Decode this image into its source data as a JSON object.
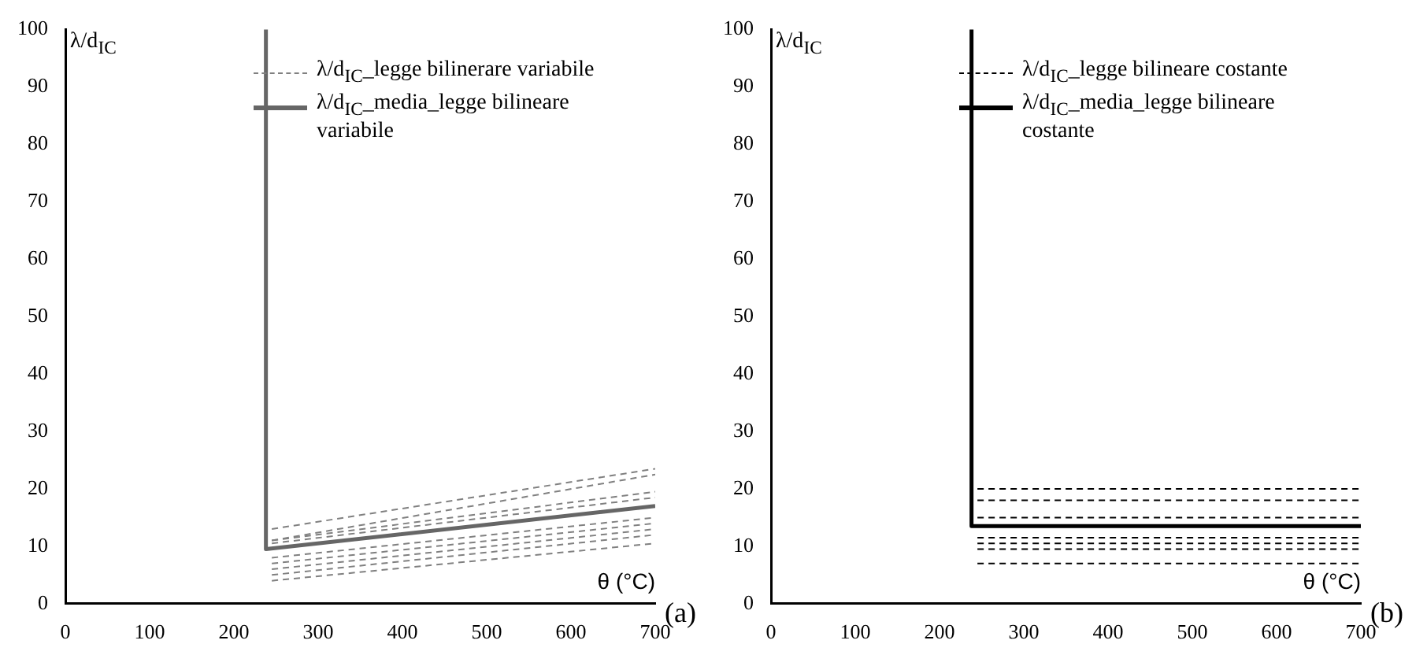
{
  "chart_data": [
    {
      "type": "line",
      "ylabel": "λ/d$_{IC}$",
      "xlabel": "θ (°C)",
      "xlim": [
        0,
        700
      ],
      "xticks": [
        0,
        100,
        200,
        300,
        400,
        500,
        600,
        700
      ],
      "ylim": [
        0,
        100
      ],
      "yticks": [
        0,
        10,
        20,
        30,
        40,
        50,
        60,
        70,
        80,
        90,
        100
      ],
      "grid": false,
      "legend": "top right",
      "marker": "none",
      "annotations": [
        "(a)"
      ],
      "series": [
        {
          "name": "λ/d$_{IC}$_legge bilinerare variabile",
          "color": "#808080",
          "line_style": "dashed",
          "x": [
            245,
            700
          ],
          "values": [
            13,
            23.5
          ]
        },
        {
          "color": "#808080",
          "line_style": "dashed",
          "x": [
            245,
            700
          ],
          "values": [
            11,
            22.5
          ]
        },
        {
          "color": "#808080",
          "line_style": "dashed",
          "x": [
            245,
            700
          ],
          "values": [
            11,
            19.5
          ]
        },
        {
          "color": "#808080",
          "line_style": "dashed",
          "x": [
            245,
            700
          ],
          "values": [
            10.5,
            18.5
          ]
        },
        {
          "color": "#808080",
          "line_style": "dashed",
          "x": [
            245,
            700
          ],
          "values": [
            8,
            15
          ]
        },
        {
          "color": "#808080",
          "line_style": "dashed",
          "x": [
            245,
            700
          ],
          "values": [
            7,
            14
          ]
        },
        {
          "color": "#808080",
          "line_style": "dashed",
          "x": [
            245,
            700
          ],
          "values": [
            6,
            13
          ]
        },
        {
          "color": "#808080",
          "line_style": "dashed",
          "x": [
            245,
            700
          ],
          "values": [
            5,
            12
          ]
        },
        {
          "color": "#808080",
          "line_style": "dashed",
          "x": [
            245,
            700
          ],
          "values": [
            4,
            10.5
          ]
        },
        {
          "name": "λ/d$_{IC}$_media_legge bilineare variabile",
          "color": "#666666",
          "line_style": "solid",
          "x": [
            238,
            238,
            700
          ],
          "values": [
            100,
            9.5,
            17
          ]
        }
      ]
    },
    {
      "type": "line",
      "ylabel": "λ/d$_{IC}$",
      "xlabel": "θ (°C)",
      "xlim": [
        0,
        700
      ],
      "xticks": [
        0,
        100,
        200,
        300,
        400,
        500,
        600,
        700
      ],
      "ylim": [
        0,
        100
      ],
      "yticks": [
        0,
        10,
        20,
        30,
        40,
        50,
        60,
        70,
        80,
        90,
        100
      ],
      "grid": false,
      "legend": "top right",
      "marker": "none",
      "annotations": [
        "(b)"
      ],
      "series": [
        {
          "name": "λ/d$_{IC}$_legge bilineare costante",
          "color": "#000000",
          "line_style": "dashed",
          "x": [
            245,
            700
          ],
          "values": [
            20,
            20
          ]
        },
        {
          "color": "#000000",
          "line_style": "dashed",
          "x": [
            245,
            700
          ],
          "values": [
            18,
            18
          ]
        },
        {
          "color": "#000000",
          "line_style": "dashed",
          "x": [
            245,
            700
          ],
          "values": [
            15,
            15
          ]
        },
        {
          "color": "#000000",
          "line_style": "dashed",
          "x": [
            245,
            700
          ],
          "values": [
            11.5,
            11.5
          ]
        },
        {
          "color": "#000000",
          "line_style": "dashed",
          "x": [
            245,
            700
          ],
          "values": [
            10.5,
            10.5
          ]
        },
        {
          "color": "#000000",
          "line_style": "dashed",
          "x": [
            245,
            700
          ],
          "values": [
            9.5,
            9.5
          ]
        },
        {
          "color": "#000000",
          "line_style": "dashed",
          "x": [
            245,
            700
          ],
          "values": [
            7,
            7
          ]
        },
        {
          "name": "λ/d$_{IC}$_media_legge bilineare costante",
          "color": "#000000",
          "line_style": "solid",
          "x": [
            238,
            238,
            700
          ],
          "values": [
            100,
            13.5,
            13.5
          ]
        }
      ]
    }
  ]
}
